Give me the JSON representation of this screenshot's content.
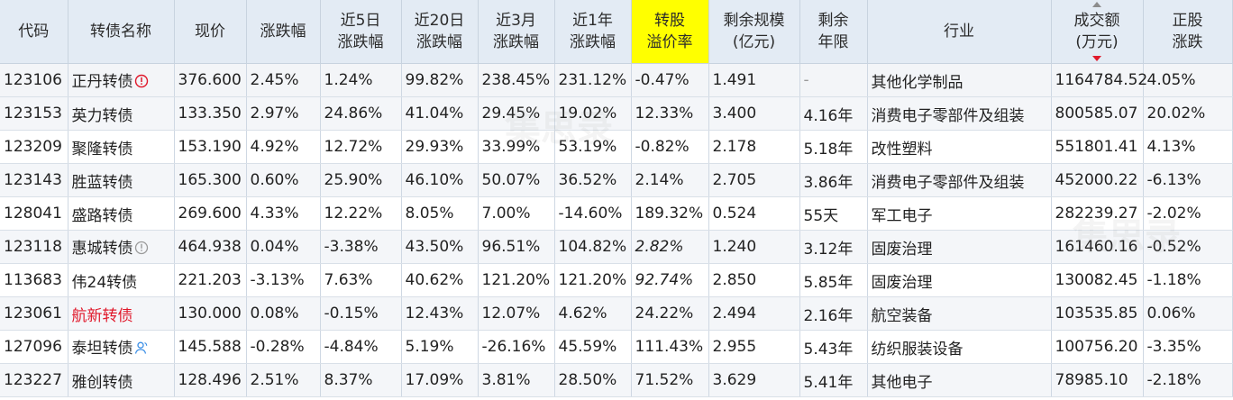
{
  "colors": {
    "header_bg": "#e3ebf4",
    "highlight_header_bg": "#ffff00",
    "code_blue": "#1f5fa8",
    "up_red": "#e0192b",
    "down_green": "#0f8a2a",
    "muted_gray": "#9a9a9a"
  },
  "headers": {
    "code": "代码",
    "name": "转债名称",
    "price": "现价",
    "change": "涨跌幅",
    "change_5d": [
      "近5日",
      "涨跌幅"
    ],
    "change_20d": [
      "近20日",
      "涨跌幅"
    ],
    "change_3m": [
      "近3月",
      "涨跌幅"
    ],
    "change_1y": [
      "近1年",
      "涨跌幅"
    ],
    "premium": [
      "转股",
      "溢价率"
    ],
    "remaining_size": [
      "剩余规模",
      "(亿元)"
    ],
    "remaining_term": [
      "剩余",
      "年限"
    ],
    "industry": "行业",
    "turnover": [
      "成交额",
      "(万元)"
    ],
    "stock_change": [
      "正股",
      "涨跌"
    ]
  },
  "rows": [
    {
      "code": "123106",
      "name": "正丹转债",
      "name_icon": "warning-icon",
      "price": "376.600",
      "change": "2.45%",
      "change_5d": "1.24%",
      "change_20d": "99.82%",
      "change_3m": "238.45%",
      "change_1y": "231.12%",
      "premium": "-0.47%",
      "size": "1.491",
      "term": "-",
      "industry": "其他化学制品",
      "turnover": "1164784.52",
      "stock_change": "4.05%"
    },
    {
      "code": "123153",
      "name": "英力转债",
      "name_icon": "",
      "price": "133.350",
      "change": "2.97%",
      "change_5d": "24.86%",
      "change_20d": "41.04%",
      "change_3m": "29.45%",
      "change_1y": "19.02%",
      "premium": "12.33%",
      "size": "3.400",
      "term": "4.16年",
      "industry": "消费电子零部件及组装",
      "turnover": "800585.07",
      "stock_change": "20.02%"
    },
    {
      "code": "123209",
      "name": "聚隆转债",
      "name_icon": "",
      "price": "153.190",
      "change": "4.92%",
      "change_5d": "12.72%",
      "change_20d": "29.93%",
      "change_3m": "33.99%",
      "change_1y": "53.19%",
      "premium": "-0.82%",
      "size": "2.178",
      "term": "5.18年",
      "industry": "改性塑料",
      "turnover": "551801.41",
      "stock_change": "4.13%"
    },
    {
      "code": "123143",
      "name": "胜蓝转债",
      "name_icon": "",
      "price": "165.300",
      "change": "0.60%",
      "change_5d": "25.90%",
      "change_20d": "46.10%",
      "change_3m": "50.07%",
      "change_1y": "36.52%",
      "premium": "2.14%",
      "size": "2.705",
      "term": "3.86年",
      "industry": "消费电子零部件及组装",
      "turnover": "452000.22",
      "stock_change": "-6.13%"
    },
    {
      "code": "128041",
      "name": "盛路转债",
      "name_icon": "",
      "price": "269.600",
      "change": "4.33%",
      "change_5d": "12.22%",
      "change_20d": "8.05%",
      "change_3m": "7.00%",
      "change_1y": "-14.60%",
      "premium": "189.32%",
      "size": "0.524",
      "term": "55天",
      "industry": "军工电子",
      "turnover": "282239.27",
      "stock_change": "-2.02%"
    },
    {
      "code": "123118",
      "name": "惠城转债",
      "name_icon": "info-icon",
      "price": "464.938",
      "change": "0.04%",
      "change_5d": "-3.38%",
      "change_20d": "43.50%",
      "change_3m": "96.51%",
      "change_1y": "104.82%",
      "premium": "2.82%",
      "size": "1.240",
      "term": "3.12年",
      "industry": "固废治理",
      "turnover": "161460.16",
      "stock_change": "-0.52%"
    },
    {
      "code": "113683",
      "name": "伟24转债",
      "name_icon": "",
      "price": "221.203",
      "change": "-3.13%",
      "change_5d": "7.63%",
      "change_20d": "40.62%",
      "change_3m": "121.20%",
      "change_1y": "121.20%",
      "premium": "92.74%",
      "size": "2.850",
      "term": "5.85年",
      "industry": "固废治理",
      "turnover": "130082.45",
      "stock_change": "-1.18%"
    },
    {
      "code": "123061",
      "name": "航新转债",
      "name_icon": "",
      "price": "130.000",
      "change": "0.08%",
      "change_5d": "-0.15%",
      "change_20d": "12.43%",
      "change_3m": "12.07%",
      "change_1y": "4.62%",
      "premium": "24.22%",
      "size": "2.494",
      "term": "2.16年",
      "industry": "航空装备",
      "turnover": "103535.85",
      "stock_change": "0.06%"
    },
    {
      "code": "127096",
      "name": "泰坦转债",
      "name_icon": "person-icon",
      "price": "145.588",
      "change": "-0.28%",
      "change_5d": "-4.84%",
      "change_20d": "5.19%",
      "change_3m": "-26.16%",
      "change_1y": "45.59%",
      "premium": "111.43%",
      "size": "2.955",
      "term": "5.43年",
      "industry": "纺织服装设备",
      "turnover": "100756.20",
      "stock_change": "-3.35%"
    },
    {
      "code": "123227",
      "name": "雅创转债",
      "name_icon": "",
      "price": "128.496",
      "change": "2.51%",
      "change_5d": "8.37%",
      "change_20d": "17.09%",
      "change_3m": "3.81%",
      "change_1y": "28.50%",
      "premium": "71.52%",
      "size": "3.629",
      "term": "5.41年",
      "industry": "其他电子",
      "turnover": "78985.10",
      "stock_change": "-2.18%"
    }
  ]
}
